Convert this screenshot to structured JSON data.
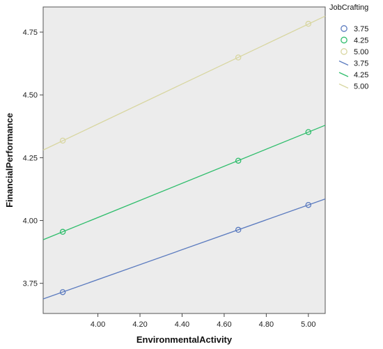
{
  "chart_data": {
    "type": "scatter",
    "xlabel": "EnvironmentalActivity",
    "ylabel": "FinancialPerformance",
    "xlim": [
      3.74,
      5.08
    ],
    "ylim": [
      3.63,
      4.85
    ],
    "xticks": [
      "4.00",
      "4.20",
      "4.40",
      "4.60",
      "4.80",
      "5.00"
    ],
    "yticks": [
      "3.75",
      "4.00",
      "4.25",
      "4.50",
      "4.75"
    ],
    "x_tick_values": [
      4.0,
      4.2,
      4.4,
      4.6,
      4.8,
      5.0
    ],
    "y_tick_values": [
      3.75,
      4.0,
      4.25,
      4.5,
      4.75
    ],
    "grid": false,
    "background": "#ececec",
    "legend_title": "JobCrafting",
    "legend_position": "right",
    "series": [
      {
        "name": "3.75",
        "color": "#5b7bbf",
        "points": [
          {
            "x": 3.833,
            "y": 3.715
          },
          {
            "x": 4.667,
            "y": 3.963
          },
          {
            "x": 5.0,
            "y": 4.062
          }
        ],
        "fit": {
          "slope": 0.297,
          "intercept": 2.577
        }
      },
      {
        "name": "4.25",
        "color": "#2ebd6b",
        "points": [
          {
            "x": 3.833,
            "y": 3.955
          },
          {
            "x": 4.667,
            "y": 4.238
          },
          {
            "x": 5.0,
            "y": 4.352
          }
        ],
        "fit": {
          "slope": 0.34,
          "intercept": 2.652
        }
      },
      {
        "name": "5.00",
        "color": "#d8d6a0",
        "points": [
          {
            "x": 3.833,
            "y": 4.318
          },
          {
            "x": 4.667,
            "y": 4.649
          },
          {
            "x": 5.0,
            "y": 4.783
          }
        ],
        "fit": {
          "slope": 0.398,
          "intercept": 2.792
        }
      }
    ],
    "legend_entries": [
      {
        "label": "3.75",
        "kind": "marker",
        "color": "#5b7bbf"
      },
      {
        "label": "4.25",
        "kind": "marker",
        "color": "#2ebd6b"
      },
      {
        "label": "5.00",
        "kind": "marker",
        "color": "#d8d6a0"
      },
      {
        "label": "3.75",
        "kind": "line",
        "color": "#5b7bbf"
      },
      {
        "label": "4.25",
        "kind": "line",
        "color": "#2ebd6b"
      },
      {
        "label": "5.00",
        "kind": "line",
        "color": "#d8d6a0"
      }
    ]
  }
}
